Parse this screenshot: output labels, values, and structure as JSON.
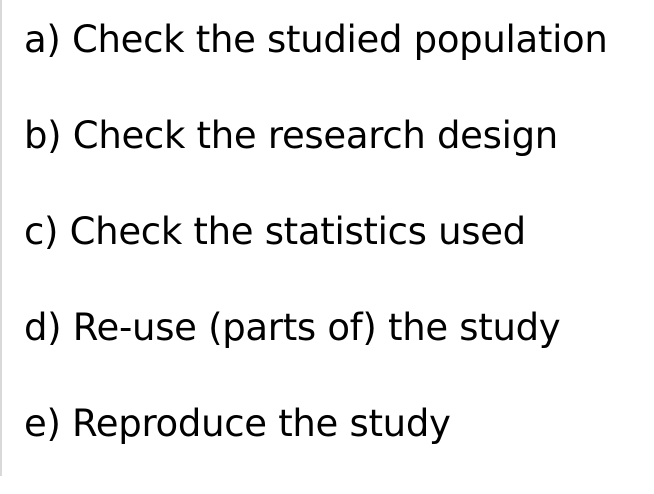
{
  "items": [
    "a) Check the studied population",
    "b) Check the research design",
    "c) Check the statistics used",
    "d) Re-use (parts of) the study",
    "e) Reproduce the study"
  ]
}
